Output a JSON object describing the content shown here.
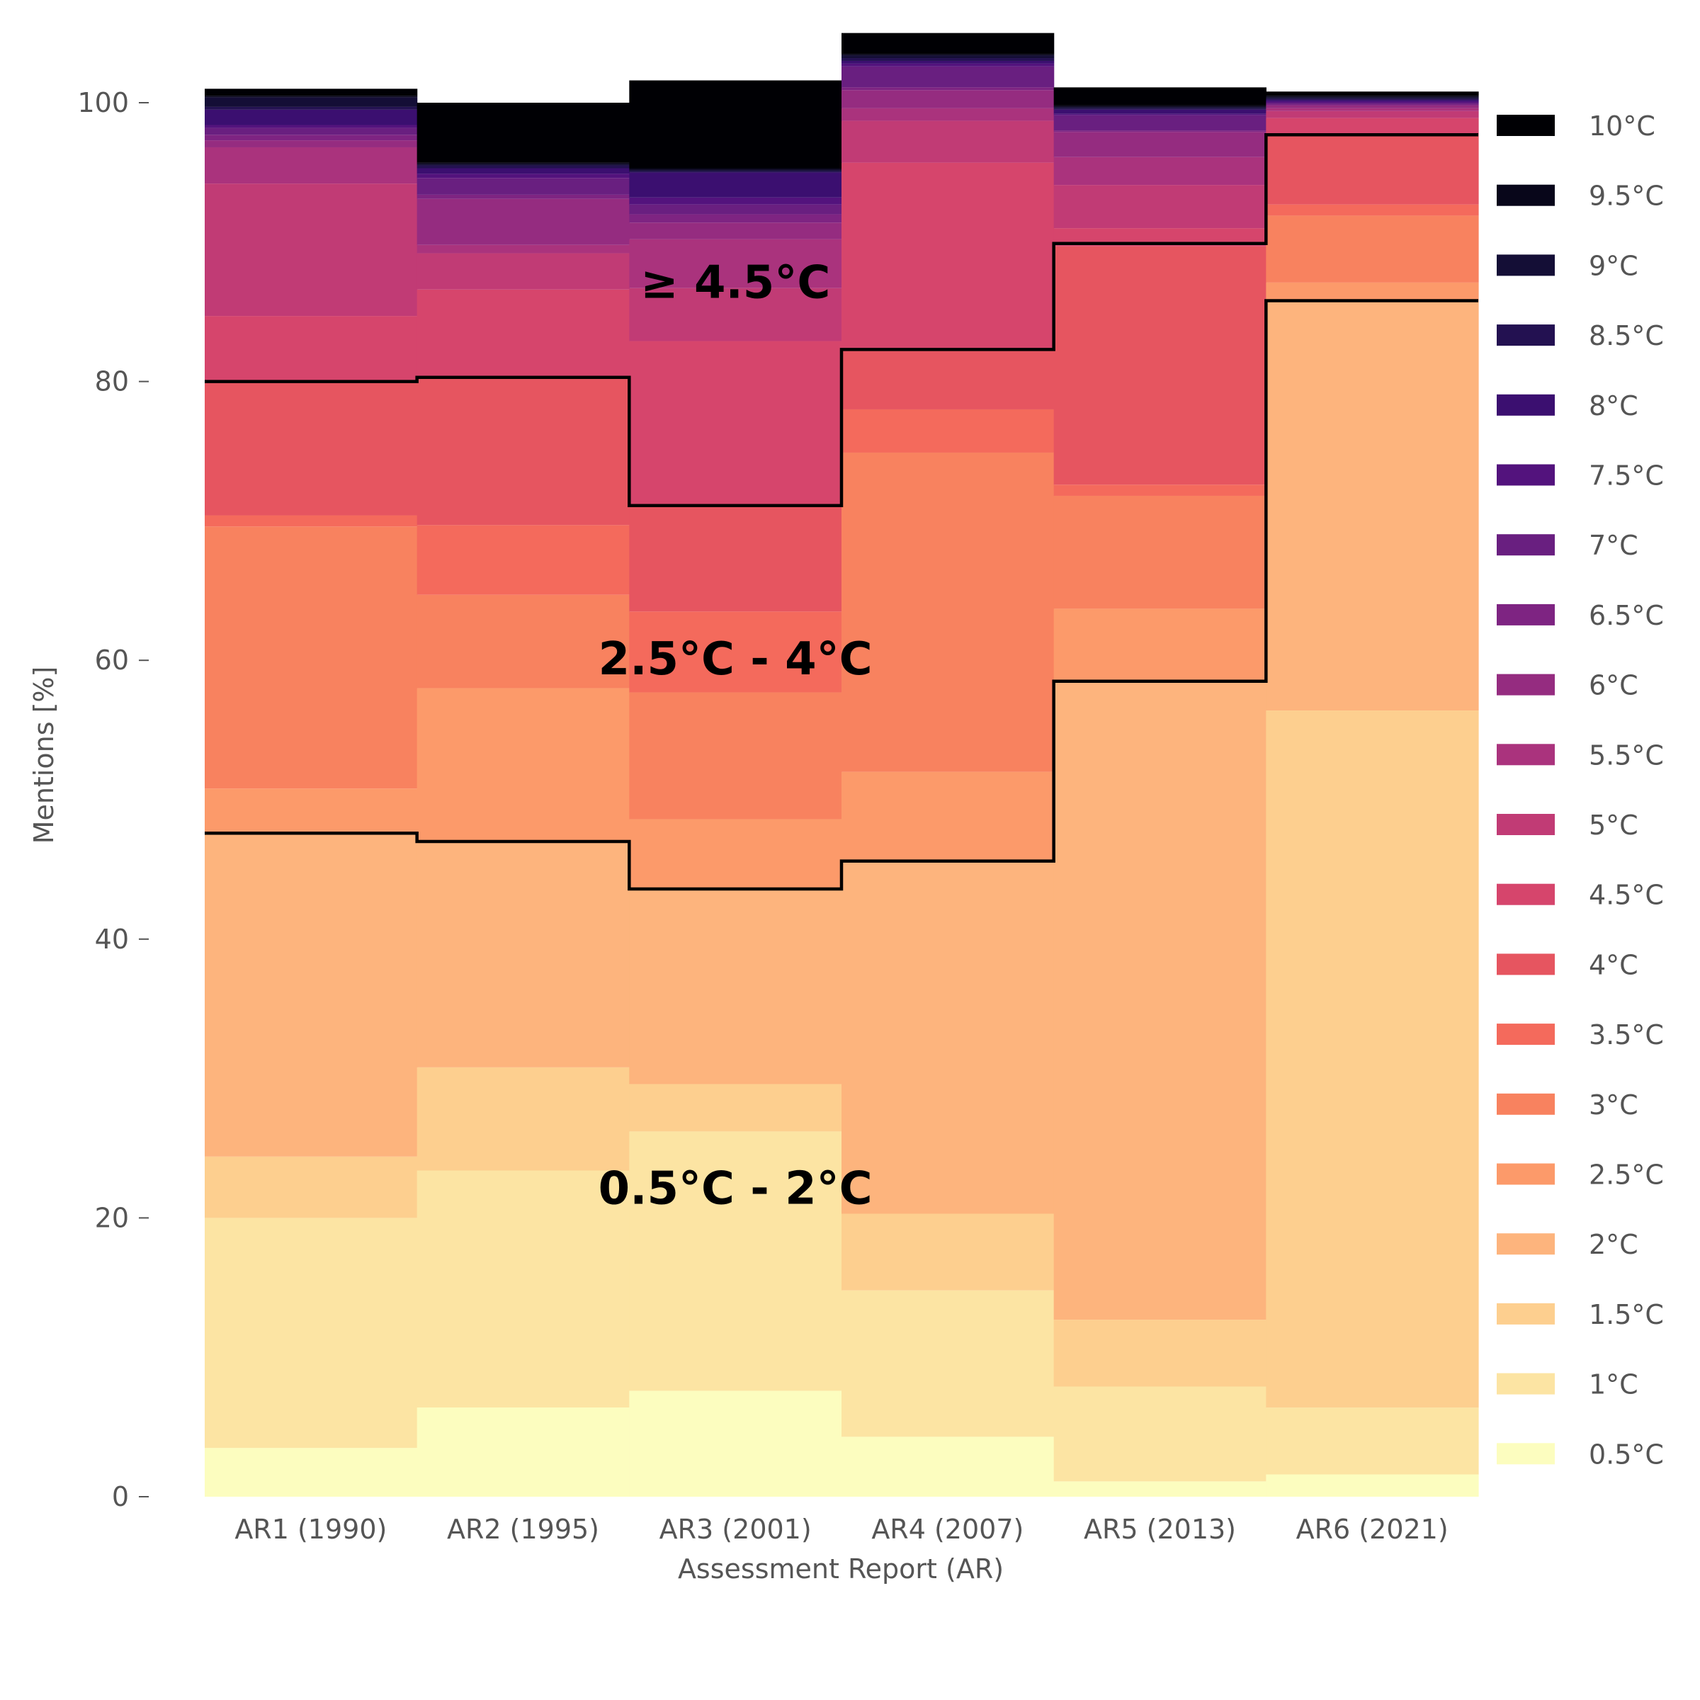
{
  "chart_data": {
    "type": "bar",
    "stacked": true,
    "xlabel": "Assessment Report (AR)",
    "ylabel": "Mentions [%]",
    "ylim": [
      0,
      100
    ],
    "yticks": [
      0,
      20,
      40,
      60,
      80,
      100
    ],
    "grid": false,
    "legend_position": "right",
    "categories": [
      "AR1 (1990)",
      "AR2 (1995)",
      "AR3 (2001)",
      "AR4 (2007)",
      "AR5 (2013)",
      "AR6 (2021)"
    ],
    "series": [
      {
        "name": "0.5°C",
        "color": "#fcfdbf",
        "values": [
          3.5,
          6.4,
          7.6,
          4.3,
          1.1,
          1.6
        ]
      },
      {
        "name": "1°C",
        "color": "#fce4a3",
        "values": [
          16.5,
          17.0,
          18.6,
          10.5,
          6.8,
          4.8
        ]
      },
      {
        "name": "1.5°C",
        "color": "#fdcf8f",
        "values": [
          4.4,
          7.4,
          3.4,
          5.5,
          4.8,
          50.0
        ]
      },
      {
        "name": "2°C",
        "color": "#fdb47d",
        "values": [
          23.2,
          16.2,
          14.0,
          25.3,
          45.8,
          29.4
        ]
      },
      {
        "name": "2.5°C",
        "color": "#fc9a6a",
        "values": [
          3.2,
          11.0,
          5.0,
          6.4,
          5.2,
          1.3
        ]
      },
      {
        "name": "3°C",
        "color": "#f8825f",
        "values": [
          18.8,
          6.7,
          9.1,
          22.9,
          8.1,
          4.8
        ]
      },
      {
        "name": "3.5°C",
        "color": "#f46a5c",
        "values": [
          0.8,
          5.0,
          5.8,
          3.1,
          0.8,
          0.8
        ]
      },
      {
        "name": "4°C",
        "color": "#e65560",
        "values": [
          9.6,
          10.7,
          7.6,
          4.3,
          17.1,
          5.0
        ]
      },
      {
        "name": "4.5°C",
        "color": "#d6456c",
        "values": [
          4.7,
          6.2,
          11.8,
          13.4,
          1.3,
          1.2
        ]
      },
      {
        "name": "5°C",
        "color": "#c13b75",
        "values": [
          9.5,
          2.6,
          3.8,
          3.0,
          3.1,
          0.5
        ]
      },
      {
        "name": "5.5°C",
        "color": "#aa337d",
        "values": [
          2.6,
          0.6,
          3.5,
          0.9,
          2.0,
          0.2
        ]
      },
      {
        "name": "6°C",
        "color": "#952c80",
        "values": [
          0.5,
          3.3,
          1.2,
          1.3,
          1.8,
          0.2
        ]
      },
      {
        "name": "6.5°C",
        "color": "#7e2482",
        "values": [
          0.4,
          0.3,
          0.6,
          0.2,
          0.1,
          0.1
        ]
      },
      {
        "name": "7°C",
        "color": "#691f80",
        "values": [
          0.5,
          1.2,
          0.7,
          1.5,
          1.1,
          0.1
        ]
      },
      {
        "name": "7.5°C",
        "color": "#53137d",
        "values": [
          0.2,
          0.3,
          0.5,
          0.2,
          0.1,
          0.1
        ]
      },
      {
        "name": "8°C",
        "color": "#3b0f70",
        "values": [
          1.1,
          0.4,
          1.8,
          0.2,
          0.3,
          0.1
        ]
      },
      {
        "name": "8.5°C",
        "color": "#231151",
        "values": [
          0.2,
          0.2,
          0.1,
          0.2,
          0.1,
          0.1
        ]
      },
      {
        "name": "9°C",
        "color": "#140e36",
        "values": [
          0.7,
          0.1,
          0.1,
          0.2,
          0.1,
          0.1
        ]
      },
      {
        "name": "9.5°C",
        "color": "#08061a",
        "values": [
          0.1,
          0.1,
          0.1,
          0.1,
          0.1,
          0.1
        ]
      },
      {
        "name": "10°C",
        "color": "#000004",
        "values": [
          0.5,
          4.3,
          6.3,
          1.5,
          1.3,
          0.3
        ]
      }
    ],
    "threshold_lines": [
      {
        "name": "upper bound of 0.5°C - 2°C",
        "values": [
          47.6,
          47.0,
          43.6,
          45.6,
          58.5,
          85.8
        ]
      },
      {
        "name": "upper bound of 2.5°C - 4°C",
        "values": [
          80.0,
          80.3,
          71.1,
          82.3,
          89.9,
          97.7
        ]
      }
    ],
    "annotations": [
      {
        "text": "0.5°C - 2°C",
        "category_index": 2.5,
        "y": 21
      },
      {
        "text": "2.5°C - 4°C",
        "category_index": 2.5,
        "y": 59
      },
      {
        "text": "≥ 4.5°C",
        "category_index": 2.5,
        "y": 86
      }
    ]
  }
}
